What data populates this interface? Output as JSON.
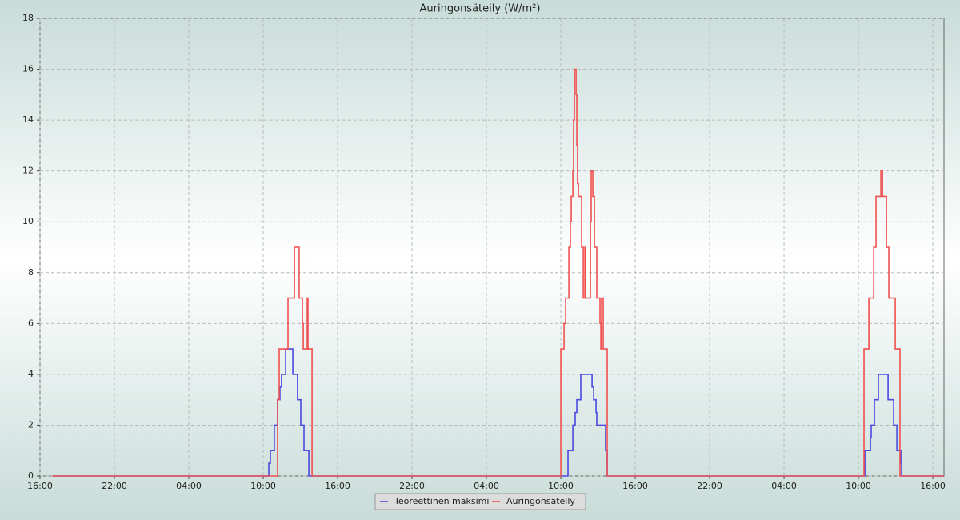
{
  "chart_data": {
    "type": "line",
    "step": true,
    "title": "Auringonsäteily (W/m²)",
    "grid": true,
    "legend": "bottom",
    "xlim": [
      0,
      72.9
    ],
    "xticks": [
      {
        "value": 0,
        "label": "16:00"
      },
      {
        "value": 6,
        "label": "22:00"
      },
      {
        "value": 12,
        "label": "04:00"
      },
      {
        "value": 18,
        "label": "10:00"
      },
      {
        "value": 24,
        "label": "16:00"
      },
      {
        "value": 30,
        "label": "22:00"
      },
      {
        "value": 36,
        "label": "04:00"
      },
      {
        "value": 42,
        "label": "10:00"
      },
      {
        "value": 48,
        "label": "16:00"
      },
      {
        "value": 54,
        "label": "22:00"
      },
      {
        "value": 60,
        "label": "04:00"
      },
      {
        "value": 66,
        "label": "10:00"
      },
      {
        "value": 72,
        "label": "16:00"
      }
    ],
    "ylim": [
      0,
      18
    ],
    "yticks": [
      0,
      2,
      4,
      6,
      8,
      10,
      12,
      14,
      16,
      18
    ],
    "series": [
      {
        "name": "Teoreettinen maksimi",
        "color": "#4a4ae0",
        "x": [
          1,
          18.45,
          18.58,
          18.9,
          19.16,
          19.35,
          19.48,
          19.81,
          20.39,
          20.77,
          21.03,
          21.29,
          21.68,
          42.58,
          42.97,
          43.16,
          43.29,
          43.61,
          44.52,
          44.65,
          44.84,
          44.9,
          45.61,
          45.74,
          66.52,
          66.97,
          67.03,
          67.29,
          67.61,
          68.39,
          68.84,
          69.1,
          69.42,
          69.48,
          72.9
        ],
        "values": [
          0,
          0.5,
          1,
          2,
          3,
          3.5,
          4,
          5,
          4,
          3,
          2,
          1,
          0,
          1,
          2,
          2.5,
          3,
          4,
          3.5,
          3,
          2.5,
          2,
          1,
          0,
          1,
          1.5,
          2,
          3,
          4,
          3,
          2,
          1,
          0.5,
          0,
          0
        ]
      },
      {
        "name": "Auringonsäteily",
        "color": "#f05050",
        "x": [
          1,
          19.16,
          19.29,
          20.0,
          20.52,
          20.9,
          21.16,
          21.23,
          21.55,
          21.61,
          21.94,
          42.0,
          42.26,
          42.39,
          42.65,
          42.77,
          42.84,
          42.97,
          43.03,
          43.1,
          43.23,
          43.29,
          43.35,
          43.42,
          43.68,
          43.81,
          43.94,
          44.0,
          44.39,
          44.45,
          44.58,
          44.71,
          44.9,
          45.16,
          45.23,
          45.29,
          45.42,
          45.74,
          66.45,
          66.84,
          67.23,
          67.42,
          67.81,
          67.94,
          68.26,
          68.45,
          68.97,
          69.35,
          72.9
        ],
        "values": [
          0,
          3,
          5,
          7,
          9,
          7,
          6,
          5,
          7,
          5,
          0,
          5,
          6,
          7,
          9,
          10,
          11,
          12,
          14,
          16,
          15,
          13,
          11.5,
          11,
          9,
          7,
          9,
          7,
          10,
          12,
          11,
          9,
          7,
          6,
          5,
          7,
          5,
          0,
          5,
          7,
          9,
          11,
          12,
          11,
          9,
          7,
          5,
          0,
          0
        ]
      }
    ]
  }
}
